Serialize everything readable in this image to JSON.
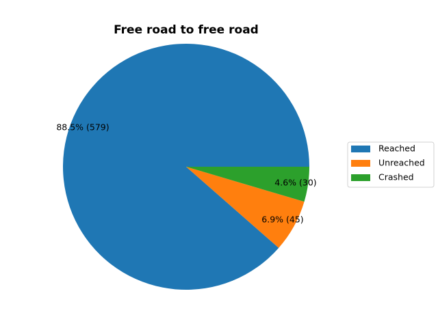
{
  "chart_data": {
    "type": "pie",
    "title": "Free road to free road",
    "categories": [
      "Reached",
      "Unreached",
      "Crashed"
    ],
    "values": [
      579,
      45,
      30
    ],
    "percent_labels": [
      "88.5%",
      "6.9%",
      "4.6%"
    ],
    "count_labels": [
      "(579)",
      "(45)",
      "(30)"
    ],
    "colors": [
      "#1f77b4",
      "#ff7f0e",
      "#2ca02c"
    ],
    "start_angle_deg": 0,
    "direction": "counterclockwise",
    "legend": {
      "placement": "right",
      "entries": [
        "Reached",
        "Unreached",
        "Crashed"
      ]
    }
  }
}
